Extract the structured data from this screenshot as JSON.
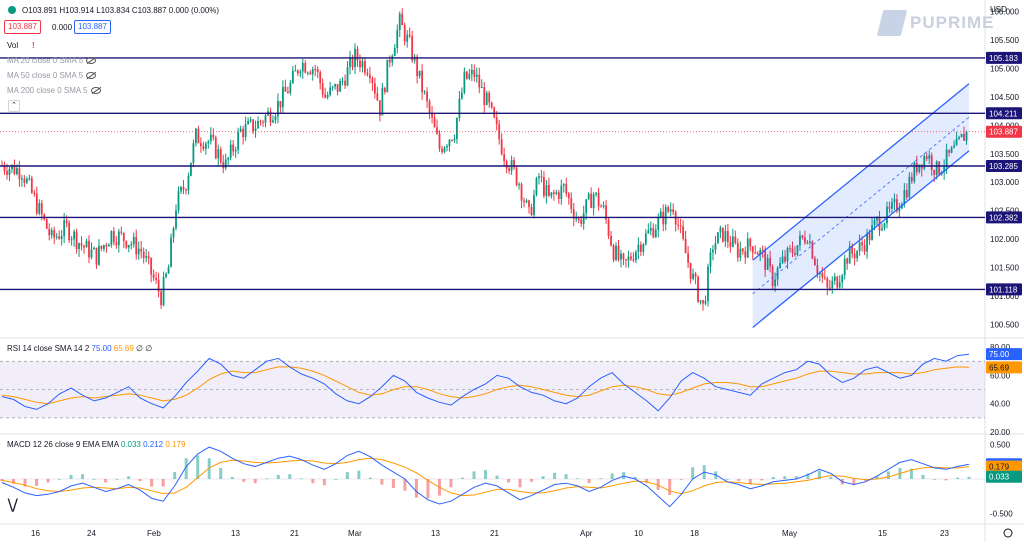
{
  "header": {
    "ohlc_text": "O103.891  H103.914  L103.834  C103.887  0.000 (0.00%)",
    "bid": "103.887",
    "spread": "0.000",
    "ask": "103.887",
    "currency": "USD",
    "vol_label": "Vol",
    "ma_labels": [
      "MA 20 close 0 SMA 5",
      "MA 50 close 0 SMA 5",
      "MA 200 close 0 SMA 5"
    ],
    "logo": "PUPRIME"
  },
  "colors": {
    "up": "#089981",
    "down": "#f23645",
    "level": "#1a1577",
    "rsi": "#2962ff",
    "rsi_ma": "#ff9800",
    "channel": "#2962ff"
  },
  "chart_data": [
    {
      "type": "candlestick",
      "ylim": [
        100.3,
        106.2
      ],
      "yticks": [
        100.5,
        101.0,
        101.5,
        102.0,
        102.5,
        103.0,
        103.5,
        104.0,
        104.5,
        105.0,
        105.5,
        106.0
      ],
      "ytick_labels": [
        "100.500",
        "101.000",
        "101.500",
        "102.000",
        "102.500",
        "103.000",
        "103.500",
        "104.000",
        "104.500",
        "105.000",
        "105.500",
        "106.000"
      ],
      "x_labels": [
        "16",
        "24",
        "Feb",
        "13",
        "21",
        "Mar",
        "13",
        "21",
        "Apr",
        "10",
        "18",
        "May",
        "15",
        "23"
      ],
      "horizontal_levels": [
        105.183,
        104.211,
        103.285,
        102.382,
        101.118
      ],
      "level_labels": [
        "105.183",
        "104.211",
        "103.285",
        "102.382",
        "101.118"
      ],
      "last_price": 103.887,
      "last_price_label": "103.887",
      "anchors": [
        [
          0,
          103.3
        ],
        [
          8,
          103.2
        ],
        [
          14,
          102.6
        ],
        [
          20,
          102.0
        ],
        [
          26,
          102.2
        ],
        [
          32,
          101.9
        ],
        [
          38,
          101.7
        ],
        [
          44,
          102.1
        ],
        [
          50,
          102.0
        ],
        [
          56,
          101.8
        ],
        [
          60,
          101.4
        ],
        [
          64,
          101.0
        ],
        [
          67,
          101.5
        ],
        [
          70,
          102.6
        ],
        [
          74,
          103.0
        ],
        [
          78,
          103.8
        ],
        [
          84,
          103.7
        ],
        [
          90,
          103.3
        ],
        [
          96,
          103.9
        ],
        [
          102,
          104.0
        ],
        [
          110,
          104.3
        ],
        [
          116,
          104.7
        ],
        [
          120,
          105.1
        ],
        [
          126,
          105.0
        ],
        [
          130,
          104.5
        ],
        [
          136,
          104.7
        ],
        [
          142,
          105.2
        ],
        [
          148,
          105.0
        ],
        [
          152,
          104.3
        ],
        [
          156,
          105.2
        ],
        [
          160,
          105.8
        ],
        [
          164,
          105.4
        ],
        [
          168,
          104.8
        ],
        [
          172,
          104.2
        ],
        [
          176,
          103.6
        ],
        [
          182,
          103.9
        ],
        [
          186,
          104.8
        ],
        [
          190,
          104.9
        ],
        [
          196,
          104.3
        ],
        [
          202,
          103.5
        ],
        [
          208,
          103.0
        ],
        [
          212,
          102.4
        ],
        [
          216,
          103.1
        ],
        [
          220,
          102.7
        ],
        [
          226,
          102.9
        ],
        [
          232,
          102.3
        ],
        [
          238,
          102.8
        ],
        [
          242,
          102.5
        ],
        [
          246,
          101.8
        ],
        [
          250,
          101.5
        ],
        [
          256,
          101.9
        ],
        [
          262,
          102.2
        ],
        [
          266,
          102.4
        ],
        [
          270,
          102.6
        ],
        [
          274,
          101.9
        ],
        [
          278,
          101.3
        ],
        [
          282,
          100.8
        ],
        [
          286,
          101.9
        ],
        [
          290,
          102.1
        ],
        [
          296,
          101.8
        ],
        [
          302,
          101.9
        ],
        [
          306,
          101.7
        ],
        [
          310,
          101.3
        ],
        [
          314,
          101.6
        ],
        [
          320,
          101.9
        ],
        [
          324,
          102.1
        ],
        [
          328,
          101.5
        ],
        [
          332,
          101.1
        ],
        [
          336,
          101.3
        ],
        [
          340,
          101.7
        ],
        [
          344,
          101.8
        ],
        [
          348,
          102.0
        ],
        [
          352,
          102.3
        ],
        [
          356,
          102.4
        ],
        [
          360,
          102.6
        ],
        [
          364,
          102.9
        ],
        [
          368,
          103.3
        ],
        [
          372,
          103.5
        ],
        [
          376,
          103.2
        ],
        [
          380,
          103.4
        ],
        [
          384,
          103.6
        ],
        [
          388,
          103.9
        ]
      ],
      "candle_count": 389,
      "channel": {
        "start": [
          302,
          100.45
        ],
        "end": [
          389,
          103.55
        ],
        "width": 1.18
      }
    },
    {
      "type": "line",
      "title": "RSI 14 close SMA 14 2",
      "ylim": [
        20,
        85
      ],
      "yticks": [
        20,
        40,
        60,
        80
      ],
      "ytick_labels": [
        "20.00",
        "40.00",
        "60.00",
        "80.00"
      ],
      "band": [
        30,
        70
      ],
      "mid": 50,
      "series": [
        {
          "name": "RSI",
          "value_label": "75.00",
          "last": 75.0,
          "values": [
            45,
            43,
            38,
            36,
            40,
            47,
            51,
            46,
            42,
            44,
            48,
            52,
            44,
            40,
            37,
            45,
            55,
            63,
            72,
            68,
            60,
            58,
            64,
            70,
            72,
            66,
            61,
            58,
            54,
            47,
            42,
            40,
            45,
            52,
            60,
            56,
            48,
            44,
            41,
            39,
            45,
            50,
            54,
            60,
            58,
            52,
            48,
            46,
            42,
            40,
            44,
            52,
            58,
            62,
            54,
            48,
            42,
            35,
            44,
            56,
            62,
            58,
            52,
            50,
            48,
            46,
            54,
            58,
            62,
            64,
            70,
            68,
            60,
            55,
            58,
            64,
            66,
            62,
            58,
            60,
            68,
            72,
            70,
            74,
            75
          ]
        },
        {
          "name": "SMA",
          "value_label": "65.69",
          "last": 65.69,
          "values": [
            46,
            45,
            43,
            41,
            40,
            42,
            44,
            45,
            44,
            45,
            46,
            47,
            46,
            44,
            42,
            43,
            46,
            51,
            57,
            61,
            63,
            62,
            62,
            64,
            66,
            66,
            65,
            63,
            60,
            56,
            52,
            48,
            46,
            47,
            50,
            52,
            52,
            50,
            47,
            45,
            44,
            45,
            47,
            50,
            52,
            53,
            52,
            50,
            48,
            46,
            45,
            46,
            49,
            52,
            53,
            52,
            50,
            47,
            46,
            48,
            51,
            54,
            55,
            55,
            54,
            52,
            52,
            54,
            56,
            58,
            61,
            63,
            63,
            62,
            61,
            61,
            62,
            62,
            62,
            61,
            62,
            64,
            65,
            66,
            65.69
          ]
        }
      ]
    },
    {
      "type": "line",
      "title": "MACD 12 26 close 9 EMA EMA",
      "ylim": [
        -0.62,
        0.62
      ],
      "yticks": [
        0.5,
        0,
        -0.5
      ],
      "ytick_labels": [
        "0.500",
        "0.000",
        "-0.500"
      ],
      "series": [
        {
          "name": "MACD",
          "value_label": "0.212",
          "last": 0.212,
          "values": [
            -0.05,
            -0.12,
            -0.2,
            -0.24,
            -0.22,
            -0.18,
            -0.1,
            -0.06,
            -0.12,
            -0.18,
            -0.14,
            -0.08,
            -0.16,
            -0.28,
            -0.32,
            -0.1,
            0.18,
            0.36,
            0.46,
            0.4,
            0.3,
            0.22,
            0.18,
            0.24,
            0.3,
            0.33,
            0.28,
            0.2,
            0.14,
            0.22,
            0.34,
            0.4,
            0.32,
            0.2,
            0.1,
            0.0,
            -0.18,
            -0.3,
            -0.36,
            -0.32,
            -0.22,
            -0.12,
            -0.06,
            -0.1,
            -0.2,
            -0.3,
            -0.24,
            -0.16,
            -0.08,
            -0.06,
            -0.1,
            -0.18,
            -0.12,
            -0.02,
            0.04,
            0.0,
            -0.1,
            -0.25,
            -0.4,
            -0.22,
            0.0,
            0.1,
            0.06,
            -0.04,
            -0.08,
            -0.14,
            -0.1,
            -0.04,
            -0.02,
            0.0,
            0.06,
            0.14,
            0.08,
            -0.04,
            -0.08,
            -0.04,
            0.04,
            0.14,
            0.24,
            0.28,
            0.22,
            0.16,
            0.14,
            0.18,
            0.212
          ]
        },
        {
          "name": "Signal",
          "value_label": "0.179",
          "last": 0.179,
          "values": [
            -0.02,
            -0.05,
            -0.09,
            -0.14,
            -0.17,
            -0.18,
            -0.16,
            -0.13,
            -0.12,
            -0.13,
            -0.14,
            -0.12,
            -0.13,
            -0.17,
            -0.21,
            -0.2,
            -0.12,
            0.02,
            0.16,
            0.24,
            0.27,
            0.26,
            0.24,
            0.23,
            0.24,
            0.26,
            0.27,
            0.26,
            0.23,
            0.22,
            0.24,
            0.28,
            0.3,
            0.28,
            0.23,
            0.17,
            0.09,
            -0.02,
            -0.12,
            -0.2,
            -0.24,
            -0.23,
            -0.19,
            -0.15,
            -0.15,
            -0.18,
            -0.2,
            -0.2,
            -0.17,
            -0.13,
            -0.11,
            -0.12,
            -0.13,
            -0.1,
            -0.06,
            -0.03,
            -0.04,
            -0.09,
            -0.17,
            -0.21,
            -0.17,
            -0.1,
            -0.05,
            -0.04,
            -0.05,
            -0.07,
            -0.08,
            -0.07,
            -0.06,
            -0.04,
            -0.02,
            0.02,
            0.05,
            0.04,
            0.01,
            -0.01,
            0.0,
            0.03,
            0.08,
            0.13,
            0.16,
            0.17,
            0.16,
            0.16,
            0.179
          ]
        },
        {
          "name": "Histogram",
          "value_label": "0.033",
          "last": 0.033
        }
      ]
    }
  ]
}
